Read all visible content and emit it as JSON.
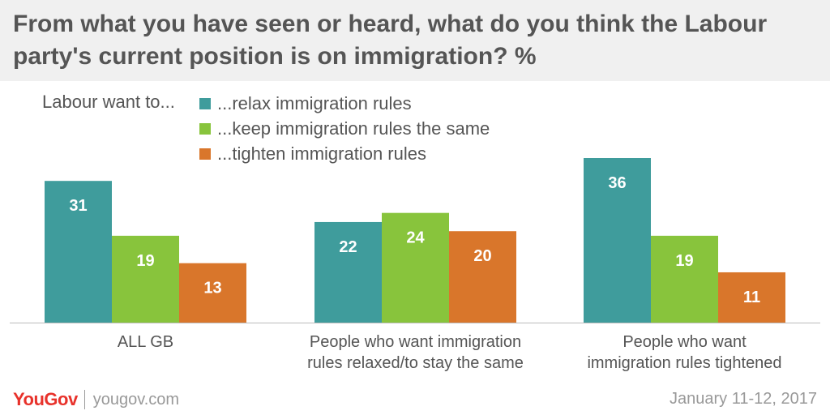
{
  "title": "From what you have seen or heard, what do you think the Labour party's current position is on immigration? %",
  "legend_prefix": "Labour want to...",
  "colors": {
    "relax": "#3f9c9c",
    "same": "#88c43c",
    "tighten": "#d9762b",
    "text": "#555555",
    "axis": "#bbbbbb",
    "brand": "#e8322b"
  },
  "chart_data": {
    "type": "bar",
    "title": "From what you have seen or heard, what do you think the Labour party's current position is on immigration? %",
    "categories": [
      [
        "ALL GB"
      ],
      [
        "People who want immigration",
        "rules relaxed/to stay the same"
      ],
      [
        "People who want",
        "immigration rules tightened"
      ]
    ],
    "series": [
      {
        "name": "...relax immigration rules",
        "color": "#3f9c9c",
        "values": [
          31,
          22,
          36
        ]
      },
      {
        "name": "...keep immigration rules the same",
        "color": "#88c43c",
        "values": [
          19,
          24,
          19
        ]
      },
      {
        "name": "...tighten immigration rules",
        "color": "#d9762b",
        "values": [
          13,
          20,
          11
        ]
      }
    ],
    "ylim": [
      0,
      36
    ],
    "grid": false,
    "legend_position": "top-left"
  },
  "footer": {
    "brand": "YouGov",
    "site": "yougov.com",
    "date": "January 11-12, 2017"
  }
}
